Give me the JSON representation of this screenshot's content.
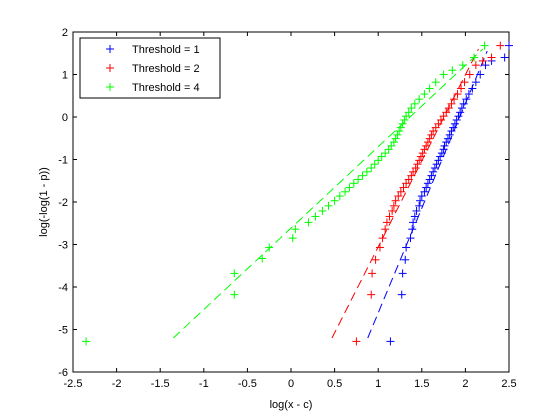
{
  "chart_data": {
    "type": "scatter",
    "title": "",
    "xlabel": "log(x - c)",
    "ylabel": "log(-log(1 - p))",
    "xlim": [
      -2.5,
      2.5
    ],
    "ylim": [
      -6,
      2
    ],
    "xticks": [
      -2.5,
      -2,
      -1.5,
      -1,
      -0.5,
      0,
      0.5,
      1,
      1.5,
      2,
      2.5
    ],
    "yticks": [
      -6,
      -5,
      -4,
      -3,
      -2,
      -1,
      0,
      1,
      2
    ],
    "xtick_labels": [
      "-2.5",
      "-2",
      "-1.5",
      "-1",
      "-0.5",
      "0",
      "0.5",
      "1",
      "1.5",
      "2",
      "2.5"
    ],
    "ytick_labels": [
      "-6",
      "-5",
      "-4",
      "-3",
      "-2",
      "-1",
      "0",
      "1",
      "2"
    ],
    "grid": false,
    "legend_position": "top-left",
    "series": [
      {
        "name": "Threshold = 1",
        "color": "#0000ff",
        "marker": "plus",
        "fit_line": [
          [
            0.88,
            -5.2
          ],
          [
            2.25,
            1.55
          ]
        ],
        "points": [
          [
            1.14,
            -5.28
          ],
          [
            1.27,
            -4.18
          ],
          [
            1.28,
            -3.68
          ],
          [
            1.31,
            -3.36
          ],
          [
            1.32,
            -3.07
          ],
          [
            1.37,
            -2.85
          ],
          [
            1.39,
            -2.64
          ],
          [
            1.4,
            -2.48
          ],
          [
            1.42,
            -2.34
          ],
          [
            1.44,
            -2.21
          ],
          [
            1.47,
            -2.09
          ],
          [
            1.48,
            -1.97
          ],
          [
            1.5,
            -1.86
          ],
          [
            1.53,
            -1.76
          ],
          [
            1.55,
            -1.66
          ],
          [
            1.57,
            -1.56
          ],
          [
            1.59,
            -1.47
          ],
          [
            1.61,
            -1.38
          ],
          [
            1.63,
            -1.29
          ],
          [
            1.65,
            -1.2
          ],
          [
            1.67,
            -1.11
          ],
          [
            1.69,
            -1.02
          ],
          [
            1.71,
            -0.93
          ],
          [
            1.73,
            -0.85
          ],
          [
            1.75,
            -0.76
          ],
          [
            1.76,
            -0.68
          ],
          [
            1.78,
            -0.59
          ],
          [
            1.8,
            -0.51
          ],
          [
            1.82,
            -0.42
          ],
          [
            1.84,
            -0.33
          ],
          [
            1.86,
            -0.25
          ],
          [
            1.88,
            -0.16
          ],
          [
            1.9,
            -0.07
          ],
          [
            1.92,
            0.02
          ],
          [
            1.94,
            0.11
          ],
          [
            1.96,
            0.21
          ],
          [
            1.98,
            0.31
          ],
          [
            2.01,
            0.42
          ],
          [
            2.04,
            0.54
          ],
          [
            2.08,
            0.67
          ],
          [
            2.12,
            0.82
          ],
          [
            2.17,
            1.0
          ],
          [
            2.23,
            1.22
          ],
          [
            2.3,
            1.32
          ],
          [
            2.45,
            1.4
          ],
          [
            2.5,
            1.68
          ]
        ]
      },
      {
        "name": "Threshold = 2",
        "color": "#ff0000",
        "marker": "plus",
        "fit_line": [
          [
            0.47,
            -5.2
          ],
          [
            2.15,
            1.6
          ]
        ],
        "points": [
          [
            0.75,
            -5.28
          ],
          [
            0.92,
            -4.18
          ],
          [
            0.93,
            -3.68
          ],
          [
            0.97,
            -3.36
          ],
          [
            1.02,
            -3.07
          ],
          [
            1.05,
            -2.85
          ],
          [
            1.08,
            -2.64
          ],
          [
            1.1,
            -2.48
          ],
          [
            1.13,
            -2.34
          ],
          [
            1.16,
            -2.21
          ],
          [
            1.18,
            -2.09
          ],
          [
            1.2,
            -1.97
          ],
          [
            1.23,
            -1.86
          ],
          [
            1.26,
            -1.76
          ],
          [
            1.29,
            -1.66
          ],
          [
            1.32,
            -1.56
          ],
          [
            1.35,
            -1.47
          ],
          [
            1.38,
            -1.38
          ],
          [
            1.4,
            -1.29
          ],
          [
            1.43,
            -1.2
          ],
          [
            1.45,
            -1.11
          ],
          [
            1.47,
            -1.02
          ],
          [
            1.49,
            -0.93
          ],
          [
            1.51,
            -0.85
          ],
          [
            1.53,
            -0.76
          ],
          [
            1.55,
            -0.68
          ],
          [
            1.57,
            -0.59
          ],
          [
            1.59,
            -0.51
          ],
          [
            1.61,
            -0.42
          ],
          [
            1.63,
            -0.33
          ],
          [
            1.66,
            -0.25
          ],
          [
            1.69,
            -0.16
          ],
          [
            1.72,
            -0.07
          ],
          [
            1.75,
            0.02
          ],
          [
            1.78,
            0.11
          ],
          [
            1.81,
            0.21
          ],
          [
            1.84,
            0.31
          ],
          [
            1.87,
            0.42
          ],
          [
            1.91,
            0.54
          ],
          [
            1.95,
            0.67
          ],
          [
            1.99,
            0.82
          ],
          [
            2.05,
            1.0
          ],
          [
            2.12,
            1.22
          ],
          [
            2.2,
            1.32
          ],
          [
            2.3,
            1.4
          ],
          [
            2.4,
            1.68
          ]
        ]
      },
      {
        "name": "Threshold = 4",
        "color": "#00ff00",
        "marker": "plus",
        "fit_line": [
          [
            -1.35,
            -5.2
          ],
          [
            2.2,
            1.6
          ]
        ],
        "points": [
          [
            -2.35,
            -5.28
          ],
          [
            -0.65,
            -4.18
          ],
          [
            -0.65,
            -3.68
          ],
          [
            -0.33,
            -3.33
          ],
          [
            -0.25,
            -3.07
          ],
          [
            0.02,
            -2.85
          ],
          [
            0.05,
            -2.64
          ],
          [
            0.2,
            -2.48
          ],
          [
            0.28,
            -2.34
          ],
          [
            0.36,
            -2.21
          ],
          [
            0.43,
            -2.09
          ],
          [
            0.5,
            -1.97
          ],
          [
            0.56,
            -1.86
          ],
          [
            0.62,
            -1.76
          ],
          [
            0.67,
            -1.66
          ],
          [
            0.72,
            -1.56
          ],
          [
            0.77,
            -1.47
          ],
          [
            0.82,
            -1.38
          ],
          [
            0.87,
            -1.29
          ],
          [
            0.92,
            -1.2
          ],
          [
            0.96,
            -1.11
          ],
          [
            1.0,
            -1.02
          ],
          [
            1.04,
            -0.93
          ],
          [
            1.08,
            -0.85
          ],
          [
            1.12,
            -0.76
          ],
          [
            1.15,
            -0.68
          ],
          [
            1.18,
            -0.59
          ],
          [
            1.2,
            -0.51
          ],
          [
            1.22,
            -0.42
          ],
          [
            1.24,
            -0.33
          ],
          [
            1.26,
            -0.25
          ],
          [
            1.28,
            -0.16
          ],
          [
            1.3,
            -0.07
          ],
          [
            1.32,
            0.02
          ],
          [
            1.35,
            0.11
          ],
          [
            1.38,
            0.21
          ],
          [
            1.42,
            0.31
          ],
          [
            1.47,
            0.42
          ],
          [
            1.53,
            0.54
          ],
          [
            1.59,
            0.67
          ],
          [
            1.66,
            0.82
          ],
          [
            1.75,
            1.0
          ],
          [
            1.85,
            1.1
          ],
          [
            1.97,
            1.22
          ],
          [
            2.1,
            1.4
          ],
          [
            2.22,
            1.68
          ]
        ]
      }
    ]
  }
}
